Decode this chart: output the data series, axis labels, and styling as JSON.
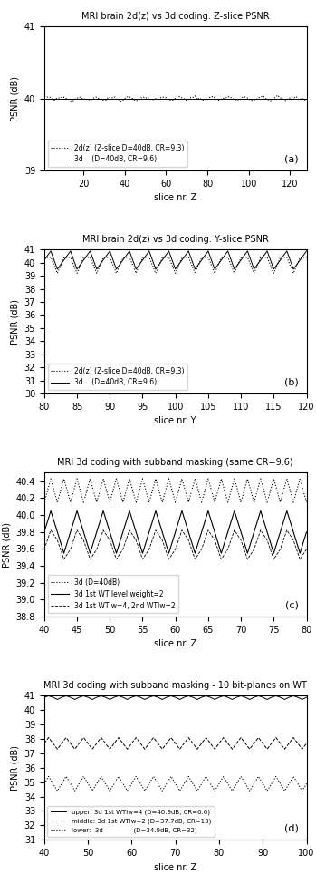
{
  "plot_a": {
    "title": "MRI brain 2d(z) vs 3d coding: Z-slice PSNR",
    "xlabel": "slice nr. Z",
    "ylabel": "PSNR (dB)",
    "xlim": [
      1,
      128
    ],
    "ylim": [
      39,
      41
    ],
    "yticks": [
      39,
      40,
      41
    ],
    "xticks": [
      20,
      40,
      60,
      80,
      100,
      120
    ],
    "legend": [
      "2d(z) (Z-slice D=40dB, CR=9.3)",
      "3d    (D=40dB, CR=9.6)"
    ],
    "label": "(a)"
  },
  "plot_b": {
    "title": "MRI brain 2d(z) vs 3d coding: Y-slice PSNR",
    "xlabel": "slice nr. Y",
    "ylabel": "PSNR (dB)",
    "xlim": [
      80,
      120
    ],
    "ylim": [
      30,
      41
    ],
    "yticks": [
      30,
      31,
      32,
      33,
      34,
      35,
      36,
      37,
      38,
      39,
      40,
      41
    ],
    "xticks": [
      80,
      85,
      90,
      95,
      100,
      105,
      110,
      115,
      120
    ],
    "legend": [
      "2d(z) (Z-slice D=40dB, CR=9.3)",
      "3d    (D=40dB, CR=9.6)"
    ],
    "label": "(b)"
  },
  "plot_c": {
    "title": "MRI 3d coding with subband masking (same CR=9.6)",
    "xlabel": "slice nr. Z",
    "ylabel": "PSNR (dB)",
    "xlim": [
      40,
      80
    ],
    "ylim": [
      38.8,
      40.5
    ],
    "yticks": [
      39,
      39.2,
      39.4,
      39.6,
      39.8,
      40,
      40.2,
      40.4
    ],
    "xticks": [
      40,
      45,
      50,
      55,
      60,
      65,
      70,
      75,
      80
    ],
    "legend": [
      "3d (D=40dB)",
      "3d 1st WT level weight=2",
      "3d 1st WTlw=4, 2nd WTlw=2"
    ],
    "label": "(c)"
  },
  "plot_d": {
    "title": "MRI 3d coding with subband masking - 10 bit-planes on WT",
    "xlabel": "slice nr. Z",
    "ylabel": "PSNR (dB)",
    "xlim": [
      40,
      100
    ],
    "ylim": [
      31,
      41
    ],
    "yticks": [
      31,
      32,
      33,
      34,
      35,
      36,
      37,
      38,
      39,
      40,
      41
    ],
    "xticks": [
      40,
      50,
      60,
      70,
      80,
      90,
      100
    ],
    "legend": [
      "upper: 3d 1st WTlw=4 (D=40.9dB, CR=6.6)",
      "middle: 3d 1st WTlw=2 (D=37.7dB, CR=13)",
      "lower:  3d               (D=34.9dB, CR=32)"
    ],
    "label": "(d)"
  }
}
